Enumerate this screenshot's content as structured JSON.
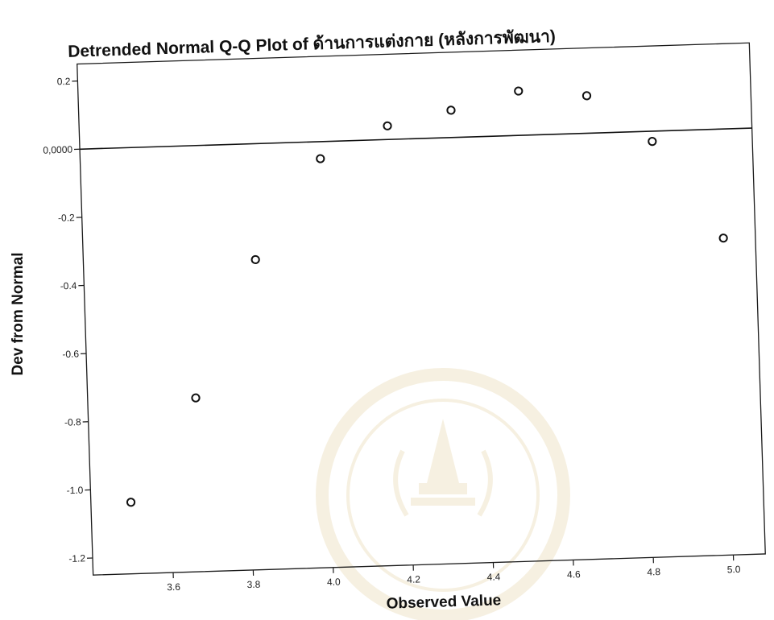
{
  "chart_data": {
    "type": "scatter",
    "title": "Detrended Normal Q-Q Plot of ด้านการแต่งกาย (หลังการพัฒนา)",
    "xlabel": "Observed Value",
    "ylabel": "Dev from Normal",
    "xlim": [
      3.4,
      5.08
    ],
    "ylim": [
      -1.25,
      0.25
    ],
    "x_ticks": [
      {
        "value": 3.6,
        "label": "3.6"
      },
      {
        "value": 3.8,
        "label": "3.8"
      },
      {
        "value": 4.0,
        "label": "4.0"
      },
      {
        "value": 4.2,
        "label": "4.2"
      },
      {
        "value": 4.4,
        "label": "4.4"
      },
      {
        "value": 4.6,
        "label": "4.6"
      },
      {
        "value": 4.8,
        "label": "4.8"
      },
      {
        "value": 5.0,
        "label": "5.0"
      }
    ],
    "y_ticks": [
      {
        "value": 0.2,
        "label": "0.2"
      },
      {
        "value": 0.0,
        "label": "0,0000"
      },
      {
        "value": -0.2,
        "label": "-0.2"
      },
      {
        "value": -0.4,
        "label": "-0.4"
      },
      {
        "value": -0.6,
        "label": "-0.6"
      },
      {
        "value": -0.8,
        "label": "-0.8"
      },
      {
        "value": -1.0,
        "label": "-1.0"
      },
      {
        "value": -1.2,
        "label": "-1.2"
      }
    ],
    "reference_line": {
      "y": 0.0
    },
    "grid": false,
    "points": [
      {
        "x": 3.5,
        "y": -1.04
      },
      {
        "x": 3.67,
        "y": -0.74
      },
      {
        "x": 3.83,
        "y": -0.34
      },
      {
        "x": 4.0,
        "y": -0.05
      },
      {
        "x": 4.17,
        "y": 0.04
      },
      {
        "x": 4.33,
        "y": 0.08
      },
      {
        "x": 4.5,
        "y": 0.13
      },
      {
        "x": 4.67,
        "y": 0.11
      },
      {
        "x": 4.83,
        "y": -0.03
      },
      {
        "x": 5.0,
        "y": -0.32
      }
    ],
    "marker": "circle",
    "colors": {
      "ink": "#111111",
      "watermark": "#c9a44a"
    }
  }
}
